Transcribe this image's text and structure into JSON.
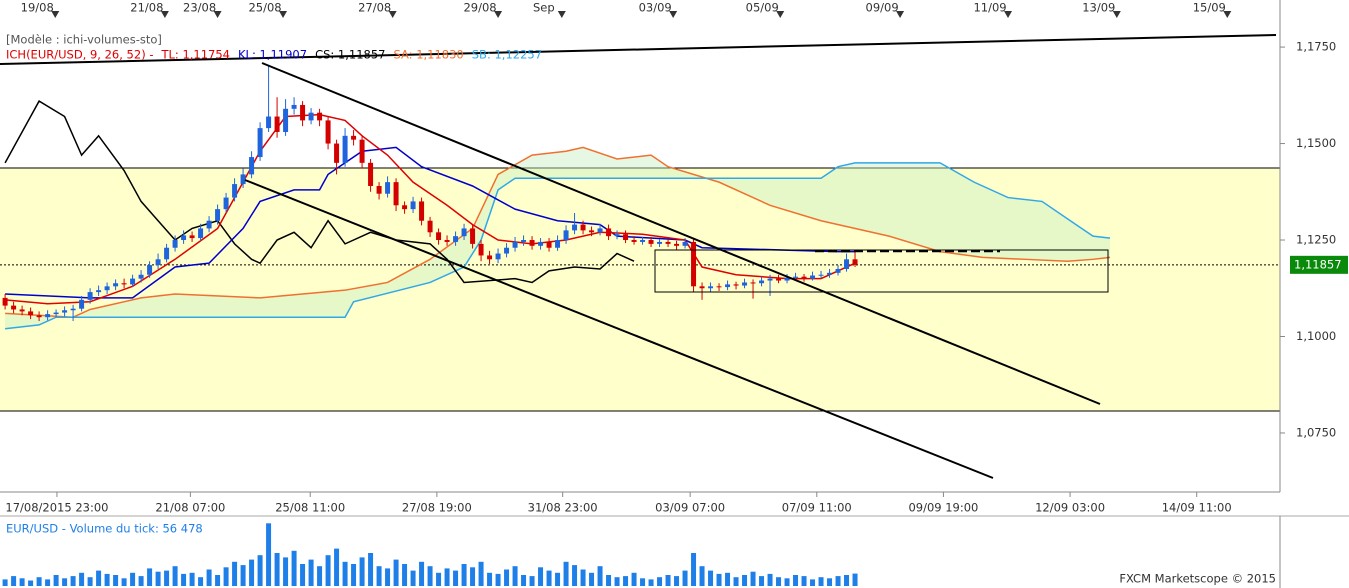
{
  "chart_data": [
    {
      "type": "candlestick",
      "template": "[Modèle : ichi-volumes-sto]",
      "legend": [
        {
          "name": "ICH(EUR/USD, 9, 26, 52) -",
          "color": "#e00000"
        },
        {
          "name": "TL: 1,11754",
          "color": "#e00000"
        },
        {
          "name": "KL: 1,11907",
          "color": "#0000cc"
        },
        {
          "name": "CS: 1,11857",
          "color": "#000000"
        },
        {
          "name": "SA: 1,11830",
          "color": "#f07030"
        },
        {
          "name": "SB: 1,12257",
          "color": "#30a8e8"
        }
      ],
      "up_color": "#1f64dc",
      "down_color": "#d40000",
      "cloud_color": "#c8f0c0",
      "xlim": [
        -0.6,
        150
      ],
      "ylim": [
        1.0597,
        1.1872
      ],
      "yticks": [
        {
          "value": 1.175,
          "label": "1,1750"
        },
        {
          "value": 1.15,
          "label": "1,1500"
        },
        {
          "value": 1.125,
          "label": "1,1250"
        },
        {
          "value": 1.1,
          "label": "1,1000"
        },
        {
          "value": 1.075,
          "label": "1,0750"
        }
      ],
      "xticks_top": [
        {
          "value": 5.9,
          "label": "19/08"
        },
        {
          "value": 18.8,
          "label": "21/08"
        },
        {
          "value": 25,
          "label": "23/08"
        },
        {
          "value": 32.7,
          "label": "25/08"
        },
        {
          "value": 45.6,
          "label": "27/08"
        },
        {
          "value": 58,
          "label": "29/08"
        },
        {
          "value": 65.5,
          "label": "Sep"
        },
        {
          "value": 78.6,
          "label": "03/09"
        },
        {
          "value": 91.2,
          "label": "05/09"
        },
        {
          "value": 105.3,
          "label": "09/09"
        },
        {
          "value": 118,
          "label": "11/09"
        },
        {
          "value": 130.8,
          "label": "13/09"
        },
        {
          "value": 143.8,
          "label": "15/09"
        }
      ],
      "xticks": [
        {
          "value": 6.1,
          "label": "17/08/2015 23:00"
        },
        {
          "value": 21.8,
          "label": "21/08 07:00"
        },
        {
          "value": 35.9,
          "label": "25/08 11:00"
        },
        {
          "value": 50.8,
          "label": "27/08 19:00"
        },
        {
          "value": 65.6,
          "label": "31/08 23:00"
        },
        {
          "value": 80.6,
          "label": "03/09 07:00"
        },
        {
          "value": 95.5,
          "label": "07/09 11:00"
        },
        {
          "value": 110.4,
          "label": "09/09 19:00"
        },
        {
          "value": 125.3,
          "label": "12/09 03:00"
        },
        {
          "value": 140.2,
          "label": "14/09 11:00"
        }
      ],
      "price_tag": {
        "value": 1.11857,
        "label": "1,11857"
      },
      "open": [
        1.11,
        1.108,
        1.107,
        1.1065,
        1.1055,
        1.105,
        1.1058,
        1.1062,
        1.1068,
        1.1072,
        1.1095,
        1.1115,
        1.112,
        1.113,
        1.1138,
        1.1135,
        1.115,
        1.116,
        1.1185,
        1.12,
        1.123,
        1.125,
        1.1262,
        1.1255,
        1.128,
        1.13,
        1.133,
        1.136,
        1.1395,
        1.142,
        1.1465,
        1.154,
        1.157,
        1.153,
        1.159,
        1.16,
        1.156,
        1.158,
        1.156,
        1.15,
        1.145,
        1.152,
        1.151,
        1.145,
        1.139,
        1.137,
        1.14,
        1.134,
        1.133,
        1.135,
        1.13,
        1.127,
        1.125,
        1.1245,
        1.126,
        1.128,
        1.124,
        1.121,
        1.12,
        1.1215,
        1.123,
        1.1245,
        1.125,
        1.1235,
        1.1245,
        1.123,
        1.125,
        1.1275,
        1.129,
        1.1275,
        1.127,
        1.128,
        1.126,
        1.1265,
        1.125,
        1.1245,
        1.125,
        1.124,
        1.1245,
        1.124,
        1.1235,
        1.1245,
        1.113,
        1.1125,
        1.113,
        1.1128,
        1.1135,
        1.1132,
        1.114,
        1.1138,
        1.1145,
        1.115,
        1.1145,
        1.1152,
        1.1155,
        1.115,
        1.1158,
        1.116,
        1.1165,
        1.1175,
        1.12
      ],
      "high": [
        1.111,
        1.109,
        1.108,
        1.1075,
        1.1065,
        1.1068,
        1.107,
        1.1078,
        1.1082,
        1.1105,
        1.1125,
        1.1132,
        1.114,
        1.1148,
        1.115,
        1.116,
        1.1172,
        1.1195,
        1.1215,
        1.124,
        1.1262,
        1.1275,
        1.1272,
        1.1292,
        1.1312,
        1.1342,
        1.1372,
        1.141,
        1.1435,
        1.148,
        1.1555,
        1.17,
        1.162,
        1.1615,
        1.162,
        1.161,
        1.1592,
        1.159,
        1.157,
        1.151,
        1.154,
        1.1535,
        1.152,
        1.146,
        1.14,
        1.1415,
        1.141,
        1.135,
        1.1362,
        1.136,
        1.131,
        1.128,
        1.1262,
        1.1272,
        1.1292,
        1.129,
        1.125,
        1.1222,
        1.1228,
        1.1242,
        1.1258,
        1.1262,
        1.126,
        1.1255,
        1.1255,
        1.1262,
        1.1288,
        1.132,
        1.13,
        1.1285,
        1.1292,
        1.129,
        1.1275,
        1.1275,
        1.126,
        1.1258,
        1.1258,
        1.1252,
        1.1252,
        1.1248,
        1.1255,
        1.1252,
        1.114,
        1.114,
        1.1138,
        1.1145,
        1.1142,
        1.115,
        1.1148,
        1.1155,
        1.116,
        1.116,
        1.1162,
        1.1165,
        1.1162,
        1.1168,
        1.117,
        1.1175,
        1.1185,
        1.1215,
        1.122
      ],
      "low": [
        1.107,
        1.106,
        1.1055,
        1.1045,
        1.104,
        1.1042,
        1.105,
        1.1052,
        1.104,
        1.1065,
        1.1085,
        1.1105,
        1.111,
        1.112,
        1.1125,
        1.1128,
        1.114,
        1.1152,
        1.1175,
        1.1192,
        1.122,
        1.124,
        1.1245,
        1.1248,
        1.127,
        1.129,
        1.132,
        1.135,
        1.1385,
        1.141,
        1.1455,
        1.153,
        1.1515,
        1.152,
        1.1575,
        1.1545,
        1.155,
        1.1545,
        1.1485,
        1.142,
        1.144,
        1.1495,
        1.1435,
        1.1375,
        1.1355,
        1.136,
        1.1325,
        1.1318,
        1.132,
        1.1288,
        1.1258,
        1.1238,
        1.1235,
        1.1235,
        1.125,
        1.1228,
        1.1195,
        1.1188,
        1.119,
        1.1205,
        1.122,
        1.1235,
        1.1225,
        1.1225,
        1.122,
        1.1222,
        1.124,
        1.1265,
        1.1265,
        1.126,
        1.1262,
        1.125,
        1.1252,
        1.1242,
        1.1238,
        1.1238,
        1.1232,
        1.1232,
        1.1232,
        1.1225,
        1.1228,
        1.1115,
        1.1095,
        1.1115,
        1.1118,
        1.112,
        1.1122,
        1.1125,
        1.1098,
        1.113,
        1.1105,
        1.1138,
        1.1138,
        1.1145,
        1.1142,
        1.1145,
        1.115,
        1.1152,
        1.1158,
        1.1168,
        1.118
      ],
      "close": [
        1.108,
        1.107,
        1.1065,
        1.1055,
        1.105,
        1.1058,
        1.1062,
        1.1068,
        1.1072,
        1.1095,
        1.1115,
        1.112,
        1.113,
        1.1138,
        1.1135,
        1.115,
        1.116,
        1.1185,
        1.12,
        1.123,
        1.125,
        1.1262,
        1.1255,
        1.128,
        1.13,
        1.133,
        1.136,
        1.1395,
        1.142,
        1.1465,
        1.154,
        1.157,
        1.153,
        1.159,
        1.16,
        1.156,
        1.158,
        1.156,
        1.15,
        1.145,
        1.152,
        1.151,
        1.145,
        1.139,
        1.137,
        1.14,
        1.134,
        1.133,
        1.135,
        1.13,
        1.127,
        1.125,
        1.1245,
        1.126,
        1.128,
        1.124,
        1.121,
        1.12,
        1.1215,
        1.123,
        1.1245,
        1.125,
        1.1235,
        1.1245,
        1.123,
        1.125,
        1.1275,
        1.129,
        1.1275,
        1.127,
        1.128,
        1.126,
        1.1265,
        1.125,
        1.1245,
        1.125,
        1.124,
        1.1245,
        1.124,
        1.1235,
        1.1245,
        1.113,
        1.1125,
        1.113,
        1.1128,
        1.1135,
        1.1132,
        1.114,
        1.1138,
        1.1145,
        1.115,
        1.1145,
        1.1152,
        1.1155,
        1.115,
        1.1158,
        1.116,
        1.1165,
        1.1175,
        1.12,
        1.11857
      ],
      "series": [
        {
          "color": "#f07030",
          "x": [
            0,
            8,
            10,
            16,
            20,
            30,
            40,
            45,
            50,
            55,
            58,
            62,
            66,
            68,
            72,
            76,
            78,
            84,
            90,
            96,
            104,
            110,
            115,
            120,
            125,
            128,
            130
          ],
          "values": [
            1.106,
            1.105,
            1.107,
            1.11,
            1.111,
            1.11,
            1.112,
            1.114,
            1.12,
            1.128,
            1.142,
            1.147,
            1.148,
            1.149,
            1.146,
            1.147,
            1.144,
            1.14,
            1.134,
            1.13,
            1.126,
            1.122,
            1.1205,
            1.12,
            1.1195,
            1.12,
            1.1205
          ]
        },
        {
          "color": "#30a8e8",
          "x": [
            0,
            4,
            6,
            40,
            41,
            50,
            54,
            56,
            58,
            60,
            66,
            96,
            98,
            100,
            110,
            114,
            118,
            122,
            126,
            128,
            130
          ],
          "values": [
            1.102,
            1.103,
            1.105,
            1.105,
            1.109,
            1.114,
            1.118,
            1.125,
            1.138,
            1.141,
            1.141,
            1.141,
            1.144,
            1.145,
            1.145,
            1.14,
            1.136,
            1.135,
            1.129,
            1.126,
            1.1255
          ]
        },
        {
          "color": "#000000",
          "x": [
            0,
            4,
            7,
            9,
            11,
            14,
            16,
            18,
            20,
            22,
            25,
            27,
            29,
            30,
            32,
            34,
            36,
            38,
            40,
            43,
            46,
            50,
            52,
            54,
            60,
            62,
            64,
            67,
            70,
            72,
            74
          ],
          "values": [
            1.145,
            1.161,
            1.157,
            1.147,
            1.152,
            1.143,
            1.135,
            1.13,
            1.125,
            1.128,
            1.13,
            1.124,
            1.12,
            1.119,
            1.125,
            1.127,
            1.123,
            1.13,
            1.124,
            1.127,
            1.125,
            1.124,
            1.12,
            1.114,
            1.115,
            1.114,
            1.117,
            1.118,
            1.1175,
            1.1215,
            1.1195
          ]
        },
        {
          "color": "#0000cc",
          "x": [
            0,
            10,
            15,
            20,
            24,
            28,
            30,
            34,
            37,
            38,
            42,
            46,
            49,
            55,
            60,
            65,
            70,
            72,
            80,
            82,
            98,
            100
          ],
          "values": [
            1.111,
            1.11,
            1.11,
            1.118,
            1.119,
            1.128,
            1.135,
            1.138,
            1.138,
            1.142,
            1.148,
            1.149,
            1.144,
            1.139,
            1.133,
            1.13,
            1.129,
            1.126,
            1.125,
            1.123,
            1.122,
            1.122
          ]
        },
        {
          "color": "#e00000",
          "x": [
            0,
            5,
            10,
            15,
            20,
            25,
            28,
            30,
            33,
            37,
            40,
            42,
            45,
            48,
            52,
            55,
            58,
            62,
            66,
            70,
            75,
            80,
            82,
            86,
            92,
            96,
            100
          ],
          "values": [
            1.1095,
            1.1085,
            1.109,
            1.113,
            1.12,
            1.128,
            1.14,
            1.148,
            1.157,
            1.1575,
            1.156,
            1.152,
            1.147,
            1.14,
            1.134,
            1.129,
            1.125,
            1.124,
            1.125,
            1.127,
            1.1265,
            1.125,
            1.118,
            1.116,
            1.115,
            1.115,
            1.119
          ]
        }
      ]
    },
    {
      "type": "bar",
      "title": "EUR/USD - Volume du tick: 56 478",
      "color": "#1e7fe8",
      "ylim": [
        0,
        300000
      ],
      "values": [
        30000,
        45000,
        35000,
        25000,
        40000,
        30000,
        50000,
        35000,
        45000,
        60000,
        40000,
        70000,
        55000,
        50000,
        35000,
        60000,
        45000,
        80000,
        65000,
        70000,
        90000,
        55000,
        60000,
        40000,
        75000,
        50000,
        85000,
        110000,
        95000,
        120000,
        140000,
        285000,
        150000,
        130000,
        160000,
        100000,
        120000,
        90000,
        140000,
        170000,
        110000,
        100000,
        130000,
        150000,
        90000,
        80000,
        120000,
        100000,
        70000,
        110000,
        90000,
        60000,
        80000,
        70000,
        100000,
        85000,
        110000,
        60000,
        55000,
        75000,
        90000,
        50000,
        45000,
        85000,
        70000,
        60000,
        110000,
        95000,
        75000,
        60000,
        90000,
        50000,
        40000,
        45000,
        60000,
        35000,
        30000,
        40000,
        50000,
        45000,
        70000,
        150000,
        90000,
        70000,
        55000,
        60000,
        40000,
        50000,
        65000,
        45000,
        55000,
        40000,
        35000,
        50000,
        45000,
        30000,
        40000,
        35000,
        45000,
        50000,
        56478
      ],
      "credit": "FXCM Marketscope © 2015"
    }
  ]
}
